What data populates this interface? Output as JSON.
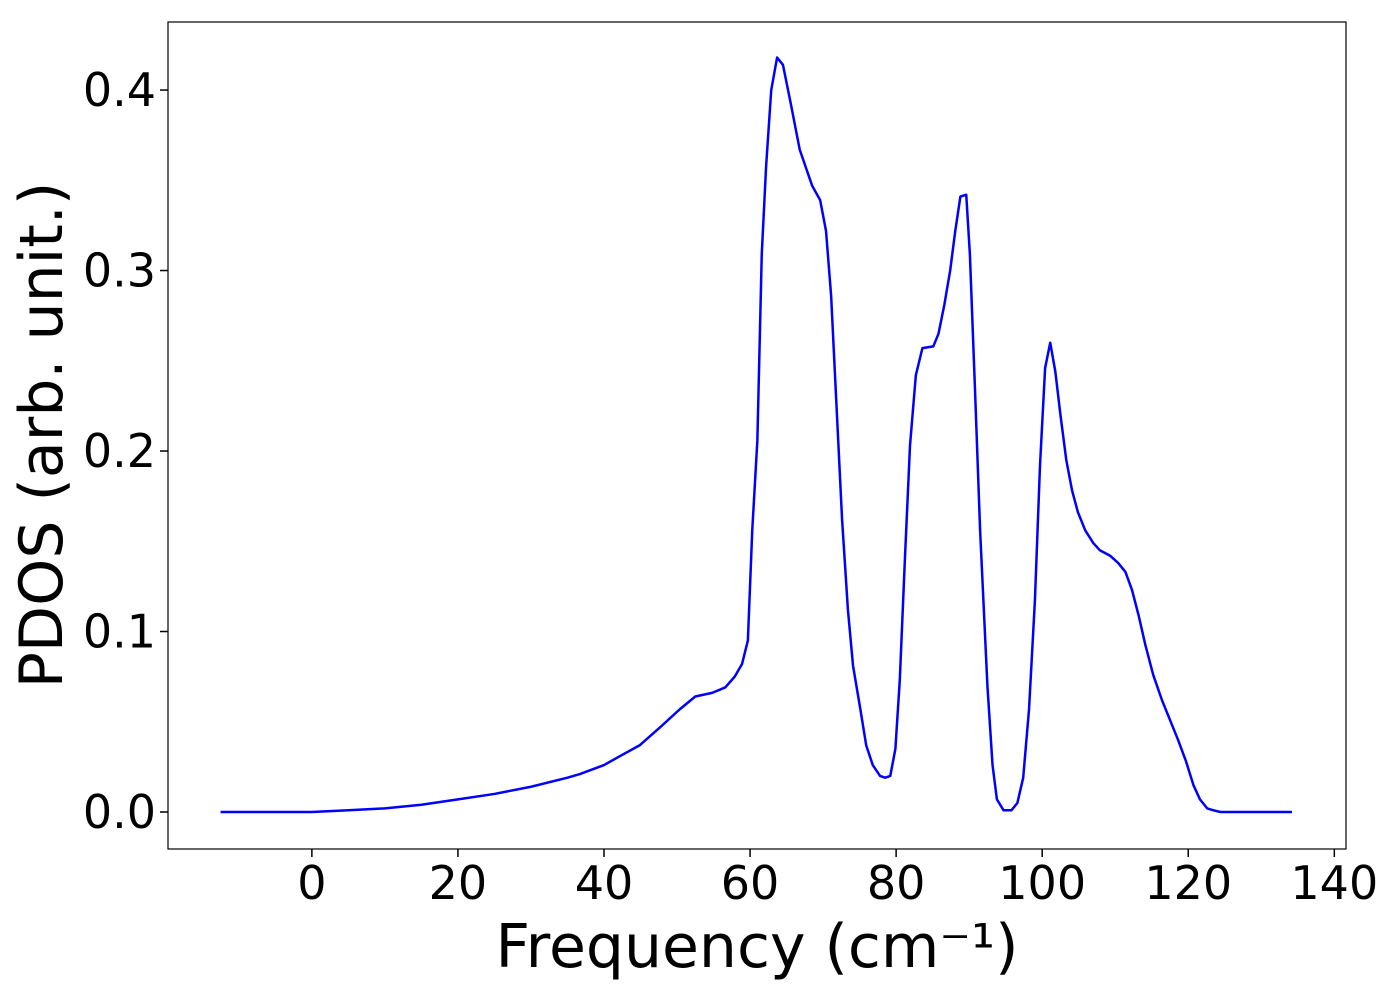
{
  "chart_data": {
    "type": "line",
    "xlabel": "Frequency (cm⁻¹)",
    "ylabel": "PDOS (arb. unit.)",
    "x": [
      -12.5,
      0,
      5,
      10,
      15,
      20,
      25,
      30,
      35,
      36.7,
      40,
      42.2,
      44.9,
      47.7,
      50.4,
      52.5,
      54.8,
      56.6,
      57.9,
      58.9,
      59.7,
      60.3,
      61.0,
      61.6,
      62.2,
      62.9,
      63.7,
      64.5,
      65.5,
      66.8,
      68.5,
      69.6,
      70.4,
      71.1,
      71.8,
      72.6,
      73.4,
      74.1,
      75.1,
      75.9,
      76.8,
      77.8,
      78.5,
      79.2,
      79.9,
      80.5,
      81.2,
      81.9,
      82.7,
      83.6,
      85.1,
      85.8,
      86.6,
      87.4,
      88.1,
      88.8,
      89.6,
      90.1,
      90.8,
      91.5,
      92.5,
      93.2,
      93.8,
      94.7,
      95.8,
      96.6,
      97.4,
      98.2,
      99.0,
      99.7,
      100.4,
      101.1,
      101.8,
      102.5,
      103.3,
      104.1,
      104.9,
      105.9,
      107.0,
      107.9,
      109.3,
      110.4,
      111.4,
      112.3,
      113.2,
      114.1,
      115.2,
      116.4,
      117.5,
      118.6,
      119.7,
      120.7,
      121.6,
      122.6,
      123.4,
      124.4,
      134.2
    ],
    "series": [
      {
        "name": "PDOS",
        "color": "#0000ff",
        "values": [
          0,
          0,
          0.001,
          0.002,
          0.004,
          0.007,
          0.01,
          0.014,
          0.019,
          0.021,
          0.026,
          0.031,
          0.037,
          0.047,
          0.057,
          0.064,
          0.066,
          0.069,
          0.075,
          0.082,
          0.095,
          0.156,
          0.206,
          0.309,
          0.358,
          0.4,
          0.418,
          0.414,
          0.394,
          0.367,
          0.347,
          0.339,
          0.322,
          0.286,
          0.228,
          0.162,
          0.112,
          0.081,
          0.057,
          0.037,
          0.026,
          0.02,
          0.019,
          0.02,
          0.035,
          0.073,
          0.14,
          0.203,
          0.242,
          0.257,
          0.258,
          0.265,
          0.281,
          0.3,
          0.322,
          0.341,
          0.342,
          0.309,
          0.234,
          0.156,
          0.07,
          0.026,
          0.007,
          0.001,
          0.001,
          0.005,
          0.019,
          0.057,
          0.117,
          0.192,
          0.246,
          0.26,
          0.244,
          0.22,
          0.195,
          0.178,
          0.166,
          0.156,
          0.149,
          0.145,
          0.142,
          0.138,
          0.133,
          0.123,
          0.109,
          0.093,
          0.076,
          0.062,
          0.051,
          0.04,
          0.028,
          0.015,
          0.007,
          0.002,
          0.001,
          0,
          0
        ]
      }
    ],
    "xlim": [
      -19.7,
      141.6
    ],
    "ylim": [
      -0.0205,
      0.4377
    ],
    "xticks": [
      0,
      20,
      40,
      60,
      80,
      100,
      120,
      140
    ],
    "yticks": [
      {
        "value": 0,
        "label": "0.0"
      },
      0.1,
      0.2,
      0.3,
      0.4
    ],
    "grid": false
  }
}
